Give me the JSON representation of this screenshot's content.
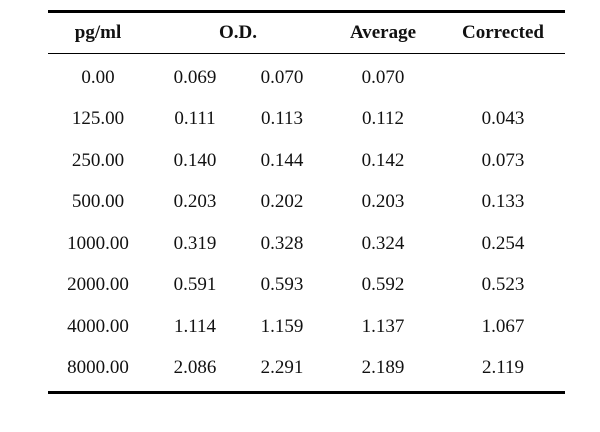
{
  "table": {
    "headers": {
      "concentration": "pg/ml",
      "od": "O.D.",
      "average": "Average",
      "corrected": "Corrected"
    },
    "rows": [
      {
        "conc": "0.00",
        "od1": "0.069",
        "od2": "0.070",
        "avg": "0.070",
        "corr": ""
      },
      {
        "conc": "125.00",
        "od1": "0.111",
        "od2": "0.113",
        "avg": "0.112",
        "corr": "0.043"
      },
      {
        "conc": "250.00",
        "od1": "0.140",
        "od2": "0.144",
        "avg": "0.142",
        "corr": "0.073"
      },
      {
        "conc": "500.00",
        "od1": "0.203",
        "od2": "0.202",
        "avg": "0.203",
        "corr": "0.133"
      },
      {
        "conc": "1000.00",
        "od1": "0.319",
        "od2": "0.328",
        "avg": "0.324",
        "corr": "0.254"
      },
      {
        "conc": "2000.00",
        "od1": "0.591",
        "od2": "0.593",
        "avg": "0.592",
        "corr": "0.523"
      },
      {
        "conc": "4000.00",
        "od1": "1.114",
        "od2": "1.159",
        "avg": "1.137",
        "corr": "1.067"
      },
      {
        "conc": "8000.00",
        "od1": "2.086",
        "od2": "2.291",
        "avg": "2.189",
        "corr": "2.119"
      }
    ]
  }
}
